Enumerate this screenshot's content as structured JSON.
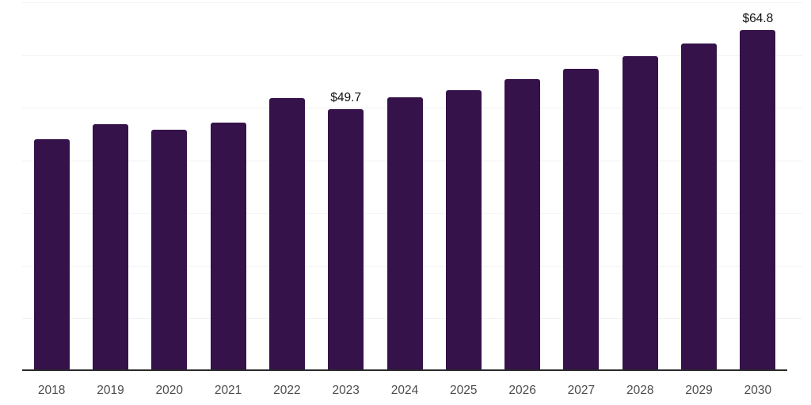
{
  "chart_data": {
    "type": "bar",
    "title": "",
    "xlabel": "",
    "ylabel": "",
    "categories": [
      "2018",
      "2019",
      "2020",
      "2021",
      "2022",
      "2023",
      "2024",
      "2025",
      "2026",
      "2027",
      "2028",
      "2029",
      "2030"
    ],
    "values": [
      44.0,
      46.8,
      45.8,
      47.1,
      51.8,
      49.7,
      52.0,
      53.4,
      55.4,
      57.4,
      59.8,
      62.2,
      64.8
    ],
    "data_labels": [
      "",
      "",
      "",
      "",
      "",
      "$49.7",
      "",
      "",
      "",
      "",
      "",
      "",
      "$64.8"
    ],
    "ylim": [
      0,
      70
    ],
    "ytick_step": 10,
    "grid": "horizontal",
    "legend": "none",
    "bar_color": "#351249",
    "gridline_color": "#f2f2f2",
    "axis_line_color": "#2b2b2b",
    "tick_label_color": "#4d4d4d",
    "data_label_color": "#111111"
  }
}
